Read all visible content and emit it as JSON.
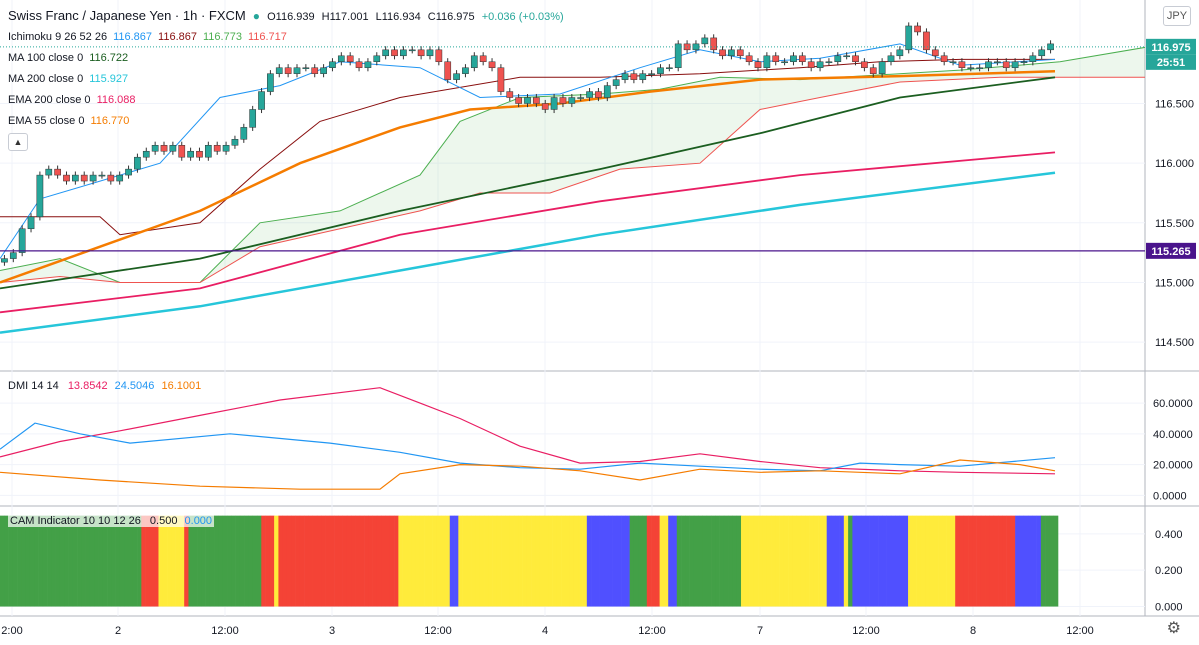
{
  "header": {
    "symbol": "Swiss Franc / Japanese Yen · 1h · FXCM",
    "open": "O116.939",
    "high": "H117.001",
    "low": "L116.934",
    "close": "C116.975",
    "change": "+0.036 (+0.03%)"
  },
  "indicators": [
    {
      "label": "Ichimoku 9 26 52 26",
      "values": [
        "116.867",
        "116.867",
        "116.773",
        "116.717"
      ],
      "colors": [
        "#2196f3",
        "#880e0e",
        "#4caf50",
        "#ef5350"
      ]
    },
    {
      "label": "MA 100 close 0",
      "values": [
        "116.722"
      ],
      "colors": [
        "#1b5e20"
      ]
    },
    {
      "label": "MA 200 close 0",
      "values": [
        "115.927"
      ],
      "colors": [
        "#26c6da"
      ]
    },
    {
      "label": "EMA 200 close 0",
      "values": [
        "116.088"
      ],
      "colors": [
        "#e91e63"
      ]
    },
    {
      "label": "EMA 55 close 0",
      "values": [
        "116.770"
      ],
      "colors": [
        "#f57c00"
      ]
    }
  ],
  "currency": "JPY",
  "price_badges": {
    "last": "116.975",
    "countdown": "25:51",
    "hline": "115.265"
  },
  "dmi_label": {
    "text": "DMI 14 14",
    "values": [
      "13.8542",
      "24.5046",
      "16.1001"
    ],
    "colors": [
      "#e91e63",
      "#2196f3",
      "#f57c00"
    ]
  },
  "cam_label": {
    "text": "CAM Indicator 10 10 12 26",
    "values": [
      "0.500",
      "0.000"
    ],
    "colors": [
      "#131722",
      "#2196f3"
    ]
  },
  "chart_data": [
    {
      "type": "candlestick",
      "title": "Swiss Franc / Japanese Yen · 1h · FXCM",
      "x_ticks": [
        "2:00",
        "2",
        "12:00",
        "3",
        "12:00",
        "4",
        "12:00",
        "7",
        "12:00",
        "8",
        "12:00"
      ],
      "y_ticks": [
        "114.500",
        "115.000",
        "115.500",
        "116.000",
        "116.500"
      ],
      "ylim": [
        114.35,
        117.2
      ],
      "horizontal_line": 115.265,
      "last_price": 116.975,
      "grid": true,
      "candles_close": [
        115.2,
        115.25,
        115.45,
        115.55,
        115.9,
        115.95,
        115.9,
        115.85,
        115.9,
        115.85,
        115.9,
        115.9,
        115.85,
        115.9,
        115.95,
        116.05,
        116.1,
        116.15,
        116.1,
        116.15,
        116.05,
        116.1,
        116.05,
        116.15,
        116.1,
        116.15,
        116.2,
        116.3,
        116.45,
        116.6,
        116.75,
        116.8,
        116.75,
        116.8,
        116.8,
        116.75,
        116.8,
        116.85,
        116.9,
        116.85,
        116.8,
        116.85,
        116.9,
        116.95,
        116.9,
        116.95,
        116.95,
        116.9,
        116.95,
        116.85,
        116.7,
        116.75,
        116.8,
        116.9,
        116.85,
        116.8,
        116.6,
        116.55,
        116.5,
        116.55,
        116.5,
        116.45,
        116.55,
        116.5,
        116.55,
        116.55,
        116.6,
        116.55,
        116.65,
        116.7,
        116.75,
        116.7,
        116.75,
        116.75,
        116.8,
        116.8,
        117.0,
        116.95,
        117.0,
        117.05,
        116.95,
        116.9,
        116.95,
        116.9,
        116.85,
        116.8,
        116.9,
        116.85,
        116.85,
        116.9,
        116.85,
        116.8,
        116.85,
        116.85,
        116.9,
        116.9,
        116.85,
        116.8,
        116.75,
        116.85,
        116.9,
        116.95,
        117.15,
        117.1,
        116.95,
        116.9,
        116.85,
        116.85,
        116.8,
        116.8,
        116.8,
        116.85,
        116.85,
        116.8,
        116.85,
        116.85,
        116.9,
        116.95,
        117.0
      ],
      "series": [
        {
          "name": "MA 100",
          "color": "#1b5e20",
          "points": [
            [
              0,
              114.95
            ],
            [
              200,
              115.2
            ],
            [
              400,
              115.6
            ],
            [
              600,
              115.95
            ],
            [
              760,
              116.25
            ],
            [
              900,
              116.55
            ],
            [
              1055,
              116.72
            ]
          ]
        },
        {
          "name": "MA 200",
          "color": "#26c6da",
          "points": [
            [
              0,
              114.58
            ],
            [
              200,
              114.8
            ],
            [
              400,
              115.1
            ],
            [
              600,
              115.4
            ],
            [
              800,
              115.65
            ],
            [
              1055,
              115.92
            ]
          ]
        },
        {
          "name": "EMA 200",
          "color": "#e91e63",
          "points": [
            [
              0,
              114.75
            ],
            [
              200,
              114.95
            ],
            [
              400,
              115.4
            ],
            [
              600,
              115.68
            ],
            [
              800,
              115.9
            ],
            [
              1055,
              116.09
            ]
          ]
        },
        {
          "name": "EMA 55",
          "color": "#f57c00",
          "points": [
            [
              0,
              115.0
            ],
            [
              100,
              115.3
            ],
            [
              200,
              115.6
            ],
            [
              300,
              116.0
            ],
            [
              400,
              116.3
            ],
            [
              470,
              116.45
            ],
            [
              560,
              116.5
            ],
            [
              650,
              116.6
            ],
            [
              760,
              116.7
            ],
            [
              900,
              116.73
            ],
            [
              1055,
              116.77
            ]
          ]
        }
      ]
    },
    {
      "type": "line",
      "title": "DMI 14 14",
      "y_ticks": [
        "0.0000",
        "20.0000",
        "40.0000",
        "60.0000"
      ],
      "ylim": [
        -3,
        75
      ],
      "series": [
        {
          "name": "13.8542",
          "color": "#e91e63",
          "points": [
            [
              0,
              25
            ],
            [
              60,
              35
            ],
            [
              120,
              42
            ],
            [
              200,
              52
            ],
            [
              280,
              62
            ],
            [
              380,
              70
            ],
            [
              420,
              60
            ],
            [
              460,
              50
            ],
            [
              520,
              32
            ],
            [
              580,
              21
            ],
            [
              640,
              22
            ],
            [
              700,
              27
            ],
            [
              760,
              22
            ],
            [
              820,
              18
            ],
            [
              900,
              16
            ],
            [
              960,
              15
            ],
            [
              1055,
              14
            ]
          ]
        },
        {
          "name": "24.5046",
          "color": "#2196f3",
          "points": [
            [
              0,
              30
            ],
            [
              35,
              47
            ],
            [
              80,
              40
            ],
            [
              130,
              34
            ],
            [
              230,
              40
            ],
            [
              330,
              34
            ],
            [
              400,
              28
            ],
            [
              460,
              21
            ],
            [
              520,
              18
            ],
            [
              580,
              17
            ],
            [
              640,
              21
            ],
            [
              700,
              19
            ],
            [
              760,
              17
            ],
            [
              820,
              16
            ],
            [
              860,
              21
            ],
            [
              900,
              20
            ],
            [
              960,
              19
            ],
            [
              1055,
              24.5
            ]
          ]
        },
        {
          "name": "16.1001",
          "color": "#f57c00",
          "points": [
            [
              0,
              15
            ],
            [
              100,
              10
            ],
            [
              200,
              6
            ],
            [
              300,
              4
            ],
            [
              380,
              4
            ],
            [
              400,
              14
            ],
            [
              460,
              20
            ],
            [
              520,
              19
            ],
            [
              580,
              16
            ],
            [
              640,
              10
            ],
            [
              700,
              17
            ],
            [
              760,
              15
            ],
            [
              820,
              16
            ],
            [
              900,
              14
            ],
            [
              960,
              23
            ],
            [
              1020,
              20
            ],
            [
              1055,
              16
            ]
          ]
        }
      ]
    },
    {
      "type": "bar",
      "title": "CAM Indicator 10 10 12 26",
      "y_ticks": [
        "0.000",
        "0.200",
        "0.400"
      ],
      "ylim": [
        -0.03,
        0.52
      ],
      "value": 0.5,
      "color_sequence": [
        "G",
        "G",
        "G",
        "G",
        "G",
        "G",
        "G",
        "G",
        "G",
        "G",
        "G",
        "G",
        "G",
        "G",
        "G",
        "G",
        "G",
        "G",
        "G",
        "G",
        "G",
        "G",
        "G",
        "G",
        "G",
        "G",
        "G",
        "G",
        "G",
        "G",
        "G",
        "G",
        "G",
        "R",
        "R",
        "R",
        "R",
        "Y",
        "Y",
        "Y",
        "Y",
        "Y",
        "Y",
        "R",
        "G",
        "G",
        "G",
        "G",
        "G",
        "G",
        "G",
        "G",
        "G",
        "G",
        "G",
        "G",
        "G",
        "G",
        "G",
        "G",
        "G",
        "R",
        "R",
        "R",
        "Y",
        "R",
        "R",
        "R",
        "R",
        "R",
        "R",
        "R",
        "R",
        "R",
        "R",
        "R",
        "R",
        "R",
        "R",
        "R",
        "R",
        "R",
        "R",
        "R",
        "R",
        "R",
        "R",
        "R",
        "R",
        "R",
        "R",
        "R",
        "R",
        "Y",
        "Y",
        "Y",
        "Y",
        "Y",
        "Y",
        "Y",
        "Y",
        "Y",
        "Y",
        "Y",
        "Y",
        "B",
        "B",
        "Y",
        "Y",
        "Y",
        "Y",
        "Y",
        "Y",
        "Y",
        "Y",
        "Y",
        "Y",
        "Y",
        "Y",
        "Y",
        "Y",
        "Y",
        "Y",
        "Y",
        "Y",
        "Y",
        "Y",
        "Y",
        "Y",
        "Y",
        "Y",
        "Y",
        "Y",
        "Y",
        "Y",
        "Y",
        "Y",
        "B",
        "B",
        "B",
        "B",
        "B",
        "B",
        "B",
        "B",
        "B",
        "B",
        "G",
        "G",
        "G",
        "G",
        "R",
        "R",
        "R",
        "Y",
        "Y",
        "B",
        "B",
        "G",
        "G",
        "G",
        "G",
        "G",
        "G",
        "G",
        "G",
        "G",
        "G",
        "G",
        "G",
        "G",
        "G",
        "G",
        "Y",
        "Y",
        "Y",
        "Y",
        "Y",
        "Y",
        "Y",
        "Y",
        "Y",
        "Y",
        "Y",
        "Y",
        "Y",
        "Y",
        "Y",
        "Y",
        "Y",
        "Y",
        "Y",
        "Y",
        "B",
        "B",
        "B",
        "B",
        "Y",
        "G",
        "B",
        "B",
        "B",
        "B",
        "B",
        "B",
        "B",
        "B",
        "B",
        "B",
        "B",
        "B",
        "B",
        "Y",
        "Y",
        "Y",
        "Y",
        "Y",
        "Y",
        "Y",
        "Y",
        "Y",
        "Y",
        "Y",
        "R",
        "R",
        "R",
        "R",
        "R",
        "R",
        "R",
        "R",
        "R",
        "R",
        "R",
        "R",
        "R",
        "R",
        "B",
        "B",
        "B",
        "B",
        "B",
        "B",
        "G",
        "G",
        "G",
        "G"
      ]
    }
  ]
}
